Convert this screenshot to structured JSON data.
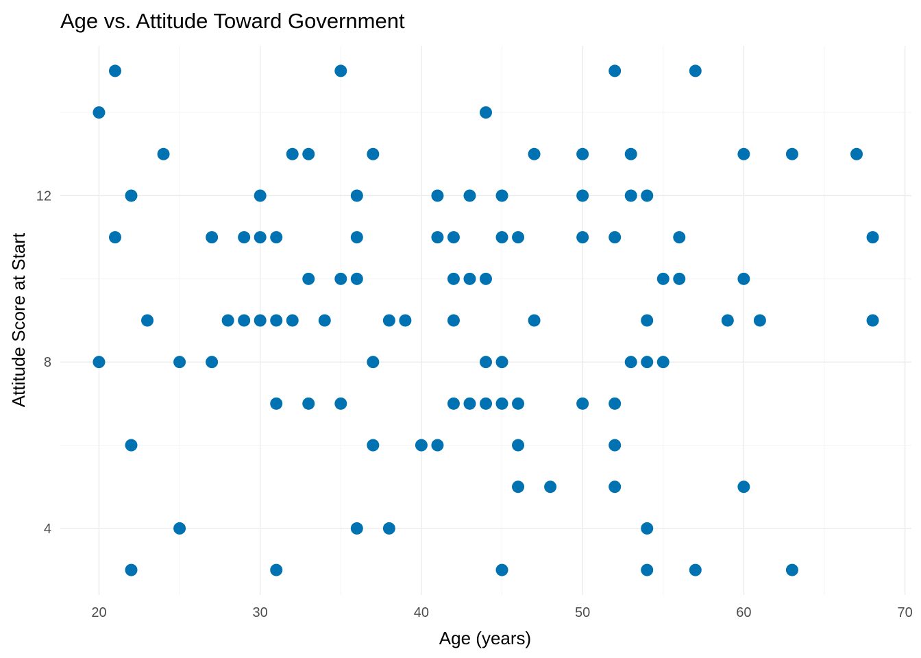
{
  "chart_data": {
    "type": "scatter",
    "title": "Age vs. Attitude Toward Government",
    "xlabel": "Age (years)",
    "ylabel": "Attitude Score at Start",
    "xlim": [
      17.6,
      70.4
    ],
    "ylim": [
      2.4,
      15.6
    ],
    "x_ticks": [
      20,
      30,
      40,
      50,
      60,
      70
    ],
    "y_ticks": [
      4,
      8,
      12
    ],
    "grid": true,
    "point_color": "#0072B2",
    "points": [
      {
        "x": 21,
        "y": 15
      },
      {
        "x": 35,
        "y": 15
      },
      {
        "x": 52,
        "y": 15
      },
      {
        "x": 57,
        "y": 15
      },
      {
        "x": 20,
        "y": 14
      },
      {
        "x": 44,
        "y": 14
      },
      {
        "x": 24,
        "y": 13
      },
      {
        "x": 32,
        "y": 13
      },
      {
        "x": 33,
        "y": 13
      },
      {
        "x": 37,
        "y": 13
      },
      {
        "x": 47,
        "y": 13
      },
      {
        "x": 50,
        "y": 13
      },
      {
        "x": 53,
        "y": 13
      },
      {
        "x": 60,
        "y": 13
      },
      {
        "x": 63,
        "y": 13
      },
      {
        "x": 67,
        "y": 13
      },
      {
        "x": 22,
        "y": 12
      },
      {
        "x": 30,
        "y": 12
      },
      {
        "x": 36,
        "y": 12
      },
      {
        "x": 41,
        "y": 12
      },
      {
        "x": 43,
        "y": 12
      },
      {
        "x": 45,
        "y": 12
      },
      {
        "x": 50,
        "y": 12
      },
      {
        "x": 53,
        "y": 12
      },
      {
        "x": 54,
        "y": 12
      },
      {
        "x": 21,
        "y": 11
      },
      {
        "x": 27,
        "y": 11
      },
      {
        "x": 29,
        "y": 11
      },
      {
        "x": 30,
        "y": 11
      },
      {
        "x": 31,
        "y": 11
      },
      {
        "x": 36,
        "y": 11
      },
      {
        "x": 41,
        "y": 11
      },
      {
        "x": 42,
        "y": 11
      },
      {
        "x": 45,
        "y": 11
      },
      {
        "x": 46,
        "y": 11
      },
      {
        "x": 50,
        "y": 11
      },
      {
        "x": 52,
        "y": 11
      },
      {
        "x": 56,
        "y": 11
      },
      {
        "x": 68,
        "y": 11
      },
      {
        "x": 33,
        "y": 10
      },
      {
        "x": 35,
        "y": 10
      },
      {
        "x": 36,
        "y": 10
      },
      {
        "x": 42,
        "y": 10
      },
      {
        "x": 43,
        "y": 10
      },
      {
        "x": 44,
        "y": 10
      },
      {
        "x": 55,
        "y": 10
      },
      {
        "x": 56,
        "y": 10
      },
      {
        "x": 60,
        "y": 10
      },
      {
        "x": 23,
        "y": 9
      },
      {
        "x": 28,
        "y": 9
      },
      {
        "x": 29,
        "y": 9
      },
      {
        "x": 30,
        "y": 9
      },
      {
        "x": 31,
        "y": 9
      },
      {
        "x": 32,
        "y": 9
      },
      {
        "x": 34,
        "y": 9
      },
      {
        "x": 38,
        "y": 9
      },
      {
        "x": 39,
        "y": 9
      },
      {
        "x": 42,
        "y": 9
      },
      {
        "x": 47,
        "y": 9
      },
      {
        "x": 54,
        "y": 9
      },
      {
        "x": 59,
        "y": 9
      },
      {
        "x": 61,
        "y": 9
      },
      {
        "x": 68,
        "y": 9
      },
      {
        "x": 20,
        "y": 8
      },
      {
        "x": 25,
        "y": 8
      },
      {
        "x": 27,
        "y": 8
      },
      {
        "x": 37,
        "y": 8
      },
      {
        "x": 44,
        "y": 8
      },
      {
        "x": 45,
        "y": 8
      },
      {
        "x": 53,
        "y": 8
      },
      {
        "x": 54,
        "y": 8
      },
      {
        "x": 55,
        "y": 8
      },
      {
        "x": 31,
        "y": 7
      },
      {
        "x": 33,
        "y": 7
      },
      {
        "x": 35,
        "y": 7
      },
      {
        "x": 42,
        "y": 7
      },
      {
        "x": 43,
        "y": 7
      },
      {
        "x": 44,
        "y": 7
      },
      {
        "x": 45,
        "y": 7
      },
      {
        "x": 46,
        "y": 7
      },
      {
        "x": 50,
        "y": 7
      },
      {
        "x": 52,
        "y": 7
      },
      {
        "x": 22,
        "y": 6
      },
      {
        "x": 37,
        "y": 6
      },
      {
        "x": 40,
        "y": 6
      },
      {
        "x": 41,
        "y": 6
      },
      {
        "x": 46,
        "y": 6
      },
      {
        "x": 52,
        "y": 6
      },
      {
        "x": 46,
        "y": 5
      },
      {
        "x": 48,
        "y": 5
      },
      {
        "x": 52,
        "y": 5
      },
      {
        "x": 60,
        "y": 5
      },
      {
        "x": 25,
        "y": 4
      },
      {
        "x": 36,
        "y": 4
      },
      {
        "x": 38,
        "y": 4
      },
      {
        "x": 54,
        "y": 4
      },
      {
        "x": 22,
        "y": 3
      },
      {
        "x": 31,
        "y": 3
      },
      {
        "x": 45,
        "y": 3
      },
      {
        "x": 54,
        "y": 3
      },
      {
        "x": 57,
        "y": 3
      },
      {
        "x": 63,
        "y": 3
      }
    ]
  }
}
